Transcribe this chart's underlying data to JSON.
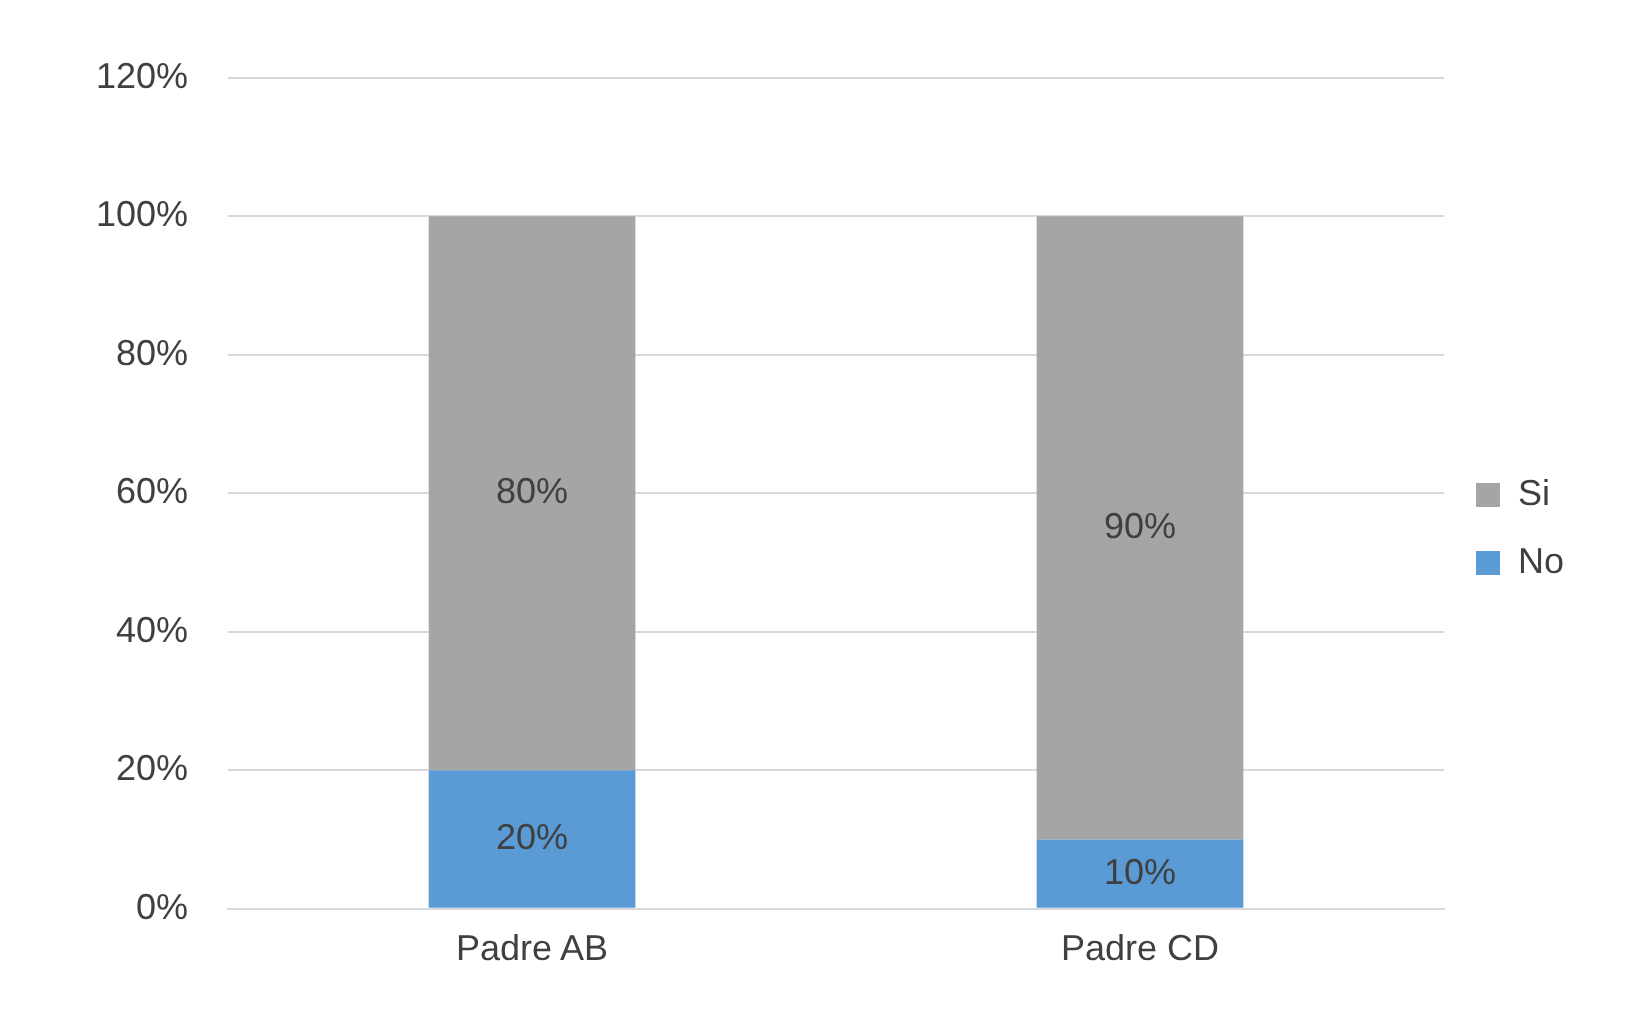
{
  "chart_data": {
    "type": "bar",
    "stacked": true,
    "categories": [
      "Padre AB",
      "Padre CD"
    ],
    "series": [
      {
        "name": "No",
        "color": "#5b9bd5",
        "values": [
          20,
          10
        ],
        "value_labels": [
          "20%",
          "10%"
        ]
      },
      {
        "name": "Si",
        "color": "#a5a5a5",
        "values": [
          80,
          90
        ],
        "value_labels": [
          "80%",
          "90%"
        ]
      }
    ],
    "ylim": [
      0,
      120
    ],
    "yticks": [
      {
        "value": 0,
        "label": "0%"
      },
      {
        "value": 20,
        "label": "20%"
      },
      {
        "value": 40,
        "label": "40%"
      },
      {
        "value": 60,
        "label": "60%"
      },
      {
        "value": 80,
        "label": "80%"
      },
      {
        "value": 100,
        "label": "100%"
      },
      {
        "value": 120,
        "label": "120%"
      }
    ],
    "grid": "y",
    "legend": "right"
  }
}
